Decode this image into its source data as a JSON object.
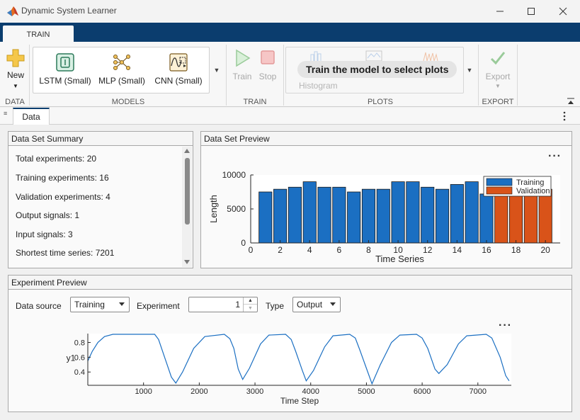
{
  "window": {
    "title": "Dynamic System Learner",
    "minimize_icon": "minimize-icon",
    "maximize_icon": "maximize-icon",
    "close_icon": "close-icon"
  },
  "tabs": {
    "train": "TRAIN"
  },
  "toolstrip": {
    "data_section": {
      "new_label": "New",
      "section": "DATA"
    },
    "models_section": {
      "items": [
        {
          "label": "LSTM (Small)",
          "icon": "lstm-icon"
        },
        {
          "label": "MLP (Small)",
          "icon": "mlp-icon"
        },
        {
          "label": "CNN (Small)",
          "icon": "cnn-icon"
        }
      ],
      "section": "MODELS"
    },
    "train_section": {
      "train_label": "Train",
      "stop_label": "Stop",
      "section": "TRAIN"
    },
    "plots_section": {
      "message": "Train the model to select plots",
      "histogram_label": "Histogram",
      "section": "PLOTS"
    },
    "export_section": {
      "export_label": "Export",
      "section": "EXPORT"
    }
  },
  "doc_tab": {
    "label": "Data"
  },
  "summary": {
    "title": "Data Set Summary",
    "lines": [
      "Total experiments: 20",
      "Training experiments: 16",
      "Validation experiments: 4",
      "Output signals: 1",
      "Input signals: 3",
      "Shortest time series: 7201"
    ]
  },
  "preview": {
    "title": "Data Set Preview"
  },
  "experiment": {
    "title": "Experiment Preview",
    "data_source_label": "Data source",
    "data_source_value": "Training",
    "experiment_label": "Experiment",
    "experiment_value": "1",
    "type_label": "Type",
    "type_value": "Output"
  },
  "chart_data": [
    {
      "type": "bar",
      "xlabel": "Time Series",
      "ylabel": "Length",
      "ylim": [
        0,
        10000
      ],
      "yticks": [
        0,
        5000,
        10000
      ],
      "xticks": [
        0,
        2,
        4,
        6,
        8,
        10,
        12,
        14,
        16,
        18,
        20
      ],
      "legend_position": "top-right",
      "series": [
        {
          "name": "Training",
          "color": "#1b6fc2",
          "x": [
            1,
            2,
            3,
            4,
            5,
            6,
            7,
            8,
            9,
            10,
            11,
            12,
            13,
            14,
            15,
            16
          ],
          "values": [
            7500,
            7900,
            8200,
            9000,
            8200,
            8200,
            7500,
            7900,
            7900,
            9000,
            9000,
            8200,
            7900,
            8600,
            9000,
            7200
          ]
        },
        {
          "name": "Validation",
          "color": "#d95319",
          "x": [
            17,
            18,
            19,
            20
          ],
          "values": [
            8200,
            8600,
            9000,
            7900
          ]
        }
      ]
    },
    {
      "type": "line",
      "xlabel": "Time Step",
      "ylabel": "y1",
      "xlim": [
        0,
        7600
      ],
      "ylim": [
        0.22,
        0.92
      ],
      "xticks": [
        1000,
        2000,
        3000,
        4000,
        5000,
        6000,
        7000
      ],
      "yticks": [
        0.4,
        0.6,
        0.8
      ],
      "yticklabels": [
        "0.4",
        "0.6",
        "0.8"
      ],
      "series": [
        {
          "color": "#1b6fc2",
          "x": [
            0,
            80,
            180,
            300,
            450,
            1200,
            1270,
            1400,
            1500,
            1580,
            1700,
            1900,
            2100,
            2450,
            2550,
            2620,
            2700,
            2780,
            2900,
            3100,
            3250,
            3550,
            3650,
            3730,
            3850,
            3920,
            4050,
            4250,
            4400,
            4700,
            4800,
            4880,
            5000,
            5100,
            5250,
            5450,
            5600,
            5900,
            6000,
            6100,
            6230,
            6300,
            6450,
            6650,
            6800,
            7150,
            7250,
            7400,
            7500,
            7560
          ],
          "values": [
            0.55,
            0.68,
            0.8,
            0.88,
            0.91,
            0.91,
            0.84,
            0.55,
            0.33,
            0.25,
            0.4,
            0.72,
            0.88,
            0.91,
            0.85,
            0.72,
            0.44,
            0.3,
            0.45,
            0.78,
            0.9,
            0.91,
            0.84,
            0.68,
            0.42,
            0.28,
            0.42,
            0.74,
            0.89,
            0.91,
            0.86,
            0.7,
            0.45,
            0.24,
            0.5,
            0.8,
            0.9,
            0.91,
            0.86,
            0.72,
            0.44,
            0.38,
            0.5,
            0.78,
            0.89,
            0.91,
            0.86,
            0.6,
            0.35,
            0.28
          ]
        }
      ]
    }
  ]
}
